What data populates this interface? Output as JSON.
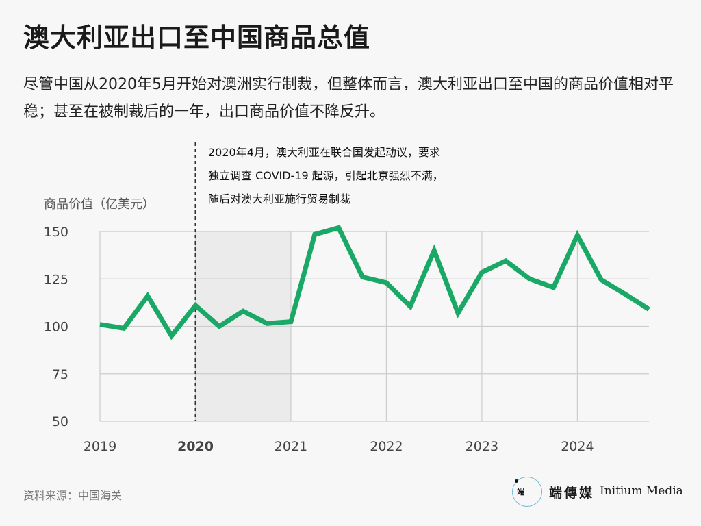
{
  "header": {
    "title": "澳大利亚出口至中国商品总值",
    "subtitle": "尽管中国从2020年5月开始对澳洲实行制裁，但整体而言，澳大利亚出口至中国的商品价值相对平稳；甚至在被制裁后的一年，出口商品价值不降反升。"
  },
  "footer": {
    "source": "资料来源：中国海关",
    "logo_glyph": "端",
    "logo_cn": "端傳媒",
    "logo_en": "Initium Media"
  },
  "colors": {
    "line": "#1aa866",
    "shade": "#ebebeb",
    "grid": "#cccccc"
  },
  "chart_data": {
    "type": "line",
    "title": "",
    "ylabel": "商品价值（亿美元）",
    "xlabel": "",
    "ylim": [
      50,
      150
    ],
    "yticks": [
      150,
      125,
      100,
      75,
      50
    ],
    "xlim": [
      2019,
      2024.75
    ],
    "xticks": [
      {
        "value": 2019,
        "label": "2019",
        "bold": false
      },
      {
        "value": 2020,
        "label": "2020",
        "bold": true
      },
      {
        "value": 2021,
        "label": "2021",
        "bold": false
      },
      {
        "value": 2022,
        "label": "2022",
        "bold": false
      },
      {
        "value": 2023,
        "label": "2023",
        "bold": false
      },
      {
        "value": 2024,
        "label": "2024",
        "bold": false
      }
    ],
    "shaded_region": [
      2020,
      2021
    ],
    "annotation": {
      "x": 2020,
      "lines": [
        "2020年4月，澳大利亚在联合国发起动议，要求",
        "独立调查 COVID-19 起源，引起北京强烈不满，",
        "随后对澳大利亚施行贸易制裁"
      ]
    },
    "series": [
      {
        "name": "",
        "x": [
          2019,
          2019.25,
          2019.5,
          2019.75,
          2020,
          2020.25,
          2020.5,
          2020.75,
          2021,
          2021.25,
          2021.5,
          2021.75,
          2022,
          2022.25,
          2022.5,
          2022.75,
          2023,
          2023.25,
          2023.5,
          2023.75,
          2024,
          2024.25,
          2024.5,
          2024.75
        ],
        "values": [
          101,
          99,
          116,
          95,
          111,
          100,
          108,
          101.5,
          102.5,
          148.5,
          152,
          126,
          123,
          110.5,
          140,
          107,
          128.5,
          134.5,
          125,
          120.5,
          148,
          124.5,
          117,
          109
        ]
      }
    ]
  }
}
